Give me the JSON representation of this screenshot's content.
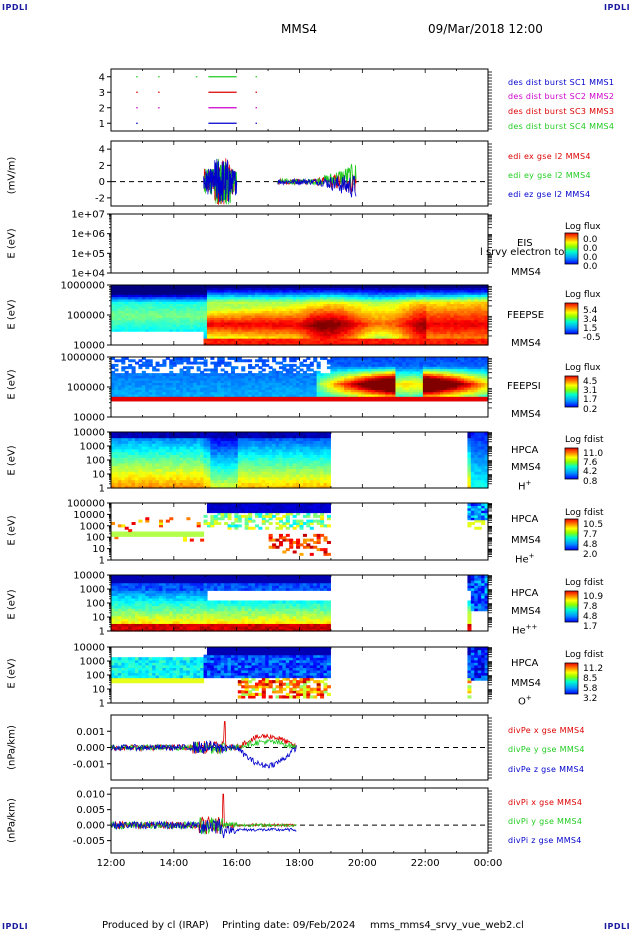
{
  "header": {
    "corner_label": "IPDLI",
    "spacecraft": "MMS4",
    "datetime": "09/Mar/2018 12:00"
  },
  "footer": {
    "produced_by": "Produced by cl (IRAP)",
    "printing_date": "Printing date: 09/Feb/2024",
    "filename": "mms_mms4_srvy_vue_web2.cl"
  },
  "colors": {
    "red": "#dd0000",
    "green": "#22cc22",
    "blue": "#0000cc",
    "magenta": "#cc00cc",
    "black": "#000000"
  },
  "x_axis": {
    "ticks": [
      "12:00",
      "14:00",
      "16:00",
      "18:00",
      "20:00",
      "22:00",
      "00:00"
    ]
  },
  "chart_data": [
    {
      "id": "burst",
      "type": "line",
      "ylabel": "",
      "yticks": [
        "4",
        "3",
        "2",
        "1"
      ],
      "ylim": [
        0.5,
        4.5
      ],
      "series": [
        {
          "name": "des dist burst SC1 MMS1",
          "y": 1,
          "color": "#0000cc",
          "intervals": [
            [
              12.8,
              12.85
            ],
            [
              15.1,
              16.0
            ],
            [
              16.6,
              16.63
            ]
          ]
        },
        {
          "name": "des dist burst SC2 MMS2",
          "y": 2,
          "color": "#cc00cc",
          "intervals": [
            [
              12.8,
              12.85
            ],
            [
              13.5,
              13.53
            ],
            [
              15.1,
              16.0
            ],
            [
              16.6,
              16.63
            ]
          ]
        },
        {
          "name": "des dist burst SC3 MMS3",
          "y": 3,
          "color": "#dd0000",
          "intervals": [
            [
              12.8,
              12.85
            ],
            [
              13.5,
              13.53
            ],
            [
              15.1,
              16.0
            ],
            [
              16.6,
              16.63
            ]
          ]
        },
        {
          "name": "des dist burst SC4 MMS4",
          "y": 4,
          "color": "#22cc22",
          "intervals": [
            [
              12.8,
              12.85
            ],
            [
              13.5,
              13.53
            ],
            [
              14.7,
              14.75
            ],
            [
              15.1,
              16.0
            ],
            [
              16.6,
              16.63
            ]
          ]
        }
      ]
    },
    {
      "id": "edi",
      "type": "line",
      "ylabel": "(mV/m)",
      "yticks": [
        "4",
        "2",
        "0",
        "-2"
      ],
      "ylim": [
        -3,
        5
      ],
      "series": [
        {
          "name": "edi ex gse l2 MMS4",
          "color": "#dd0000"
        },
        {
          "name": "edi ey gse l2 MMS4",
          "color": "#22cc22"
        },
        {
          "name": "edi ez gse l2 MMS4",
          "color": "#0000cc"
        }
      ]
    },
    {
      "id": "eis",
      "type": "heatmap",
      "ylabel": "E (eV)",
      "yticks": [
        "1e+07",
        "1e+06",
        "1e+05",
        "1e+04"
      ],
      "instrument": "EIS",
      "spacecraft": "MMS4",
      "overlap_text": "l srvy electron to",
      "colorbar": {
        "title": "Log flux",
        "ticks": [
          "0.0",
          "0.0",
          "0.0",
          "0.0"
        ]
      }
    },
    {
      "id": "feepse",
      "type": "heatmap",
      "ylabel": "E (eV)",
      "yticks": [
        "1000000",
        "100000",
        "10000"
      ],
      "instrument": "FEEPSE",
      "spacecraft": "MMS4",
      "colorbar": {
        "title": "Log flux",
        "ticks": [
          "5.4",
          "3.4",
          "1.5",
          "-0.5"
        ]
      }
    },
    {
      "id": "feepsi",
      "type": "heatmap",
      "ylabel": "E (eV)",
      "yticks": [
        "1000000",
        "100000",
        "10000"
      ],
      "instrument": "FEEPSI",
      "spacecraft": "MMS4",
      "colorbar": {
        "title": "Log flux",
        "ticks": [
          "4.5",
          "3.1",
          "1.7",
          "0.2"
        ]
      }
    },
    {
      "id": "hpca_h",
      "type": "heatmap",
      "ylabel": "E (eV)",
      "yticks": [
        "10000",
        "1000",
        "100",
        "10",
        "1"
      ],
      "instrument": "HPCA",
      "spacecraft": "MMS4",
      "species": "H",
      "species_sup": "+",
      "colorbar": {
        "title": "Log fdist",
        "ticks": [
          "11.0",
          "7.6",
          "4.2",
          "0.8"
        ]
      }
    },
    {
      "id": "hpca_he",
      "type": "heatmap",
      "ylabel": "E (eV)",
      "yticks": [
        "100000",
        "10000",
        "1000",
        "100",
        "10",
        "1"
      ],
      "instrument": "HPCA",
      "spacecraft": "MMS4",
      "species": "He",
      "species_sup": "+",
      "colorbar": {
        "title": "Log fdist",
        "ticks": [
          "10.5",
          "7.7",
          "4.8",
          "2.0"
        ]
      }
    },
    {
      "id": "hpca_he2",
      "type": "heatmap",
      "ylabel": "E (eV)",
      "yticks": [
        "10000",
        "1000",
        "100",
        "10",
        "1"
      ],
      "instrument": "HPCA",
      "spacecraft": "MMS4",
      "species": "He",
      "species_sup": "++",
      "colorbar": {
        "title": "Log fdist",
        "ticks": [
          "10.9",
          "7.8",
          "4.8",
          "1.7"
        ]
      }
    },
    {
      "id": "hpca_o",
      "type": "heatmap",
      "ylabel": "E (eV)",
      "yticks": [
        "10000",
        "1000",
        "100",
        "10",
        "1"
      ],
      "instrument": "HPCA",
      "spacecraft": "MMS4",
      "species": "O",
      "species_sup": "+",
      "colorbar": {
        "title": "Log fdist",
        "ticks": [
          "11.2",
          "8.5",
          "5.8",
          "3.2"
        ]
      }
    },
    {
      "id": "divpe",
      "type": "line",
      "ylabel": "(nPa/km)",
      "yticks": [
        "0.001",
        "0.000",
        "-0.001"
      ],
      "ylim": [
        -0.002,
        0.002
      ],
      "series": [
        {
          "name": "divPe x gse MMS4",
          "color": "#dd0000"
        },
        {
          "name": "divPe y gse MMS4",
          "color": "#22cc22"
        },
        {
          "name": "divPe z gse MMS4",
          "color": "#0000cc"
        }
      ]
    },
    {
      "id": "divpi",
      "type": "line",
      "ylabel": "(nPa/km)",
      "yticks": [
        "0.010",
        "0.005",
        "0.000",
        "-0.005"
      ],
      "ylim": [
        -0.009,
        0.012
      ],
      "series": [
        {
          "name": "divPi x gse MMS4",
          "color": "#dd0000"
        },
        {
          "name": "divPi y gse MMS4",
          "color": "#22cc22"
        },
        {
          "name": "divPi z gse MMS4",
          "color": "#0000cc"
        }
      ]
    }
  ]
}
